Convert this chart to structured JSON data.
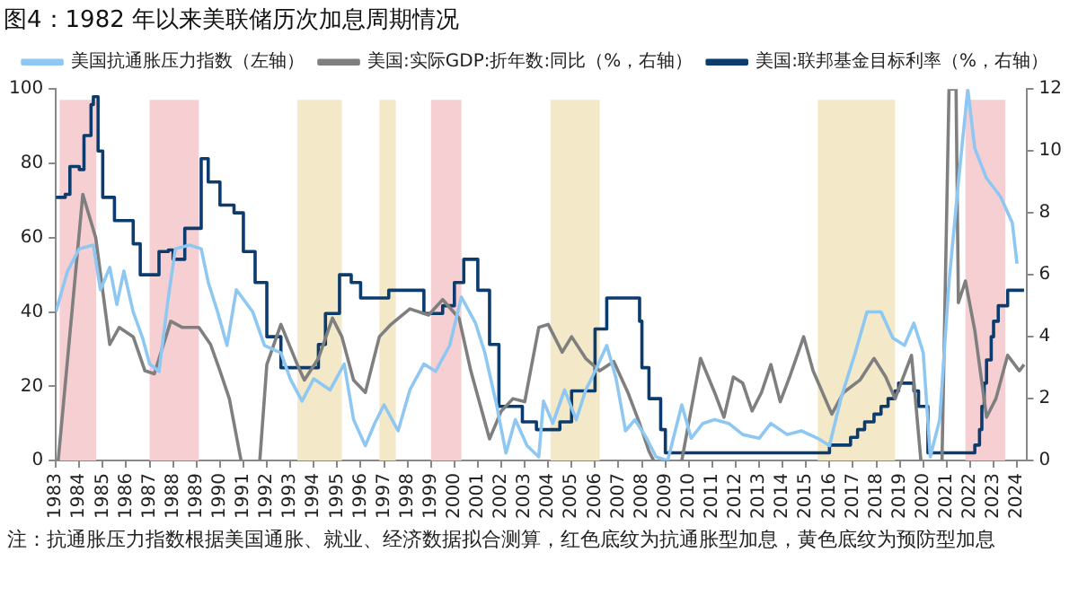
{
  "chart_data": {
    "type": "line",
    "title": "图4：1982 年以来美联储历次加息周期情况",
    "xlim": [
      1983,
      2024.4
    ],
    "xticks": [
      1983,
      1984,
      1985,
      1986,
      1987,
      1988,
      1989,
      1990,
      1991,
      1992,
      1993,
      1994,
      1995,
      1996,
      1997,
      1998,
      1999,
      2000,
      2001,
      2002,
      2003,
      2004,
      2005,
      2006,
      2007,
      2008,
      2009,
      2010,
      2011,
      2012,
      2013,
      2014,
      2015,
      2016,
      2017,
      2018,
      2019,
      2020,
      2021,
      2022,
      2023,
      2024
    ],
    "ylim": [
      0,
      100
    ],
    "yticks": [
      0,
      20,
      40,
      60,
      80,
      100
    ],
    "y2lim": [
      0,
      12
    ],
    "y2ticks": [
      0,
      2,
      4,
      6,
      8,
      10,
      12
    ],
    "grid": false,
    "legend": "top",
    "marker": "none",
    "line_style": "solid",
    "series": [
      {
        "name": "美国抗通胀压力指数（左轴）",
        "color": "#8ec8f2",
        "x": [
          1983.0,
          1983.5,
          1984.0,
          1984.6,
          1984.9,
          1985.3,
          1985.6,
          1985.9,
          1986.3,
          1986.7,
          1987.0,
          1987.4,
          1987.8,
          1988.1,
          1988.7,
          1989.2,
          1989.5,
          1989.9,
          1990.3,
          1990.7,
          1991.4,
          1991.9,
          1992.6,
          1993.0,
          1993.5,
          1994.0,
          1994.7,
          1995.3,
          1995.7,
          1996.2,
          1996.6,
          1997.0,
          1997.6,
          1998.1,
          1998.7,
          1999.2,
          1999.8,
          2000.3,
          2000.9,
          2001.3,
          2001.8,
          2002.2,
          2002.6,
          2003.1,
          2003.6,
          2003.8,
          2004.2,
          2004.7,
          2005.2,
          2005.6,
          2006.0,
          2006.5,
          2006.9,
          2007.3,
          2007.7,
          2008.2,
          2008.6,
          2009.1,
          2009.7,
          2010.1,
          2010.6,
          2011.1,
          2011.7,
          2012.3,
          2013.0,
          2013.5,
          2014.2,
          2014.8,
          2015.5,
          2016.0,
          2016.5,
          2017.1,
          2017.6,
          2018.2,
          2018.7,
          2019.2,
          2019.6,
          2020.0,
          2020.3,
          2020.7,
          2021.1,
          2021.5,
          2021.9,
          2022.2,
          2022.7,
          2023.3,
          2023.8,
          2024.0
        ],
        "values": [
          40,
          51,
          57,
          58,
          46,
          52,
          42,
          51,
          40,
          33,
          26,
          24,
          44,
          57,
          58,
          57,
          48,
          40,
          31,
          46,
          40,
          31,
          29,
          22,
          16,
          22,
          19,
          26,
          11,
          4,
          10,
          15,
          8,
          19,
          26,
          24,
          31,
          44,
          37,
          29,
          15,
          2,
          11,
          4,
          1,
          16,
          10,
          19,
          11,
          19,
          24,
          31,
          22,
          8,
          11,
          6,
          1,
          0,
          15,
          6,
          10,
          11,
          10,
          7,
          6,
          10,
          7,
          8,
          6,
          4,
          17,
          29,
          40,
          40,
          33,
          31,
          37,
          29,
          1,
          11,
          48,
          75,
          100,
          84,
          76,
          71,
          64,
          53
        ]
      },
      {
        "name": "美国:实际GDP:折年数:同比（%，右轴）",
        "color": "#7f7f7f",
        "axis": "y2",
        "x": [
          1983.1,
          1984.15,
          1984.7,
          1985.3,
          1985.7,
          1986.3,
          1986.8,
          1987.2,
          1987.9,
          1988.4,
          1989.1,
          1989.6,
          1990.0,
          1990.4,
          1990.9,
          1991.3,
          1991.7,
          1992.0,
          1992.6,
          1993.3,
          1993.6,
          1994.2,
          1994.8,
          1995.2,
          1995.7,
          1996.2,
          1996.8,
          1997.3,
          1998.1,
          1998.9,
          1999.5,
          2000.2,
          2000.7,
          2001.5,
          2002.0,
          2002.5,
          2003.0,
          2003.6,
          2004.0,
          2004.6,
          2005.0,
          2005.6,
          2006.2,
          2006.8,
          2007.4,
          2007.9,
          2008.3,
          2008.5,
          2009.1,
          2009.7,
          2010.5,
          2011.1,
          2011.5,
          2011.9,
          2012.3,
          2012.7,
          2013.1,
          2013.5,
          2013.9,
          2014.3,
          2014.9,
          2015.3,
          2016.1,
          2016.6,
          2017.3,
          2017.9,
          2018.4,
          2018.8,
          2019.5,
          2019.9,
          2020.4,
          2020.8,
          2021.1,
          2021.4,
          2021.5,
          2021.8,
          2022.2,
          2022.7,
          2023.1,
          2023.6,
          2024.1,
          2024.3
        ],
        "values": [
          0,
          8.6,
          7.2,
          3.75,
          4.3,
          4.0,
          2.9,
          2.8,
          4.5,
          4.3,
          4.3,
          3.75,
          2.9,
          2.0,
          0,
          null,
          0,
          3.1,
          4.4,
          3.1,
          2.6,
          3.3,
          4.6,
          4.0,
          2.6,
          2.2,
          4.0,
          4.4,
          4.9,
          4.7,
          5.2,
          4.6,
          2.9,
          0.7,
          1.6,
          2.0,
          1.9,
          4.3,
          4.4,
          3.5,
          4.0,
          3.3,
          2.9,
          3.2,
          2.2,
          1.2,
          0.3,
          0,
          null,
          0,
          3.3,
          2.2,
          1.4,
          2.7,
          2.5,
          1.6,
          2.2,
          3.1,
          1.9,
          2.7,
          4.0,
          2.9,
          1.5,
          2.2,
          2.6,
          3.3,
          2.7,
          2.0,
          3.4,
          0,
          null,
          0,
          12,
          12,
          5.1,
          5.8,
          4.2,
          1.4,
          2.0,
          3.4,
          2.9,
          3.1
        ]
      },
      {
        "name": "美国:联邦基金目标利率（%，右轴）",
        "color": "#0c3c6e",
        "axis": "y2",
        "type": "step",
        "x": [
          1983.0,
          1983.4,
          1983.6,
          1984.0,
          1984.2,
          1984.5,
          1984.6,
          1984.8,
          1985.0,
          1985.5,
          1986.0,
          1986.3,
          1986.6,
          1987.0,
          1987.4,
          1987.8,
          1988.0,
          1988.5,
          1989.2,
          1989.5,
          1990.0,
          1990.6,
          1991.0,
          1991.5,
          1992.0,
          1992.6,
          1993.0,
          1994.0,
          1994.2,
          1994.5,
          1995.1,
          1995.6,
          1996.0,
          1997.2,
          1998.7,
          1999.5,
          2000.0,
          2000.4,
          2001.0,
          2001.5,
          2001.9,
          2002.9,
          2003.5,
          2004.5,
          2005.0,
          2006.0,
          2006.5,
          2007.6,
          2007.9,
          2008.0,
          2008.3,
          2008.8,
          2009.0,
          2015.9,
          2016.0,
          2016.9,
          2017.2,
          2017.5,
          2017.9,
          2018.2,
          2018.5,
          2018.8,
          2018.95,
          2019.5,
          2019.6,
          2019.8,
          2020.2,
          2022.2,
          2022.4,
          2022.5,
          2022.6,
          2022.7,
          2022.9,
          2023.0,
          2023.2,
          2023.6,
          2024.3
        ],
        "values": [
          8.5,
          8.6,
          9.5,
          9.4,
          10.5,
          11.5,
          11.75,
          10,
          8.5,
          7.75,
          7.75,
          7,
          6,
          6,
          6.75,
          6.8,
          6.5,
          7.5,
          9.75,
          9,
          8.25,
          8,
          6.75,
          5.75,
          4,
          3,
          3,
          3,
          3.75,
          4.75,
          6,
          5.75,
          5.25,
          5.5,
          4.75,
          5,
          5.75,
          6.5,
          5.5,
          3.75,
          1.75,
          1.25,
          1,
          1.25,
          2.25,
          4.25,
          5.25,
          5.25,
          4.5,
          3,
          2,
          1,
          0.25,
          0.25,
          0.5,
          0.75,
          1,
          1.25,
          1.5,
          1.75,
          2,
          2.25,
          2.5,
          2.5,
          2.25,
          1.75,
          0.25,
          0.5,
          1,
          1.75,
          2.5,
          3.25,
          4,
          4.5,
          5,
          5.5,
          5.5
        ]
      }
    ],
    "bands": [
      {
        "axis": "x",
        "from": 1983.16,
        "to": 1984.72,
        "color": "#f6cfd3"
      },
      {
        "axis": "x",
        "from": 1987.0,
        "to": 1989.1,
        "color": "#f6cfd3"
      },
      {
        "axis": "x",
        "from": 1993.3,
        "to": 1995.2,
        "color": "#f3e8c8"
      },
      {
        "axis": "x",
        "from": 1996.8,
        "to": 1997.5,
        "color": "#f3e8c8"
      },
      {
        "axis": "x",
        "from": 1999.0,
        "to": 2000.3,
        "color": "#f6cfd3"
      },
      {
        "axis": "x",
        "from": 2004.1,
        "to": 2006.2,
        "color": "#f3e8c8"
      },
      {
        "axis": "x",
        "from": 2015.5,
        "to": 2018.8,
        "color": "#f3e8c8"
      },
      {
        "axis": "x",
        "from": 2021.8,
        "to": 2023.5,
        "color": "#f6cfd3"
      }
    ],
    "annotations": [
      "注：抗通胀压力指数根据美国通胀、就业、经济数据拟合测算，红色底纹为抗通胀型加息，黄色底纹为预防型加息"
    ]
  }
}
